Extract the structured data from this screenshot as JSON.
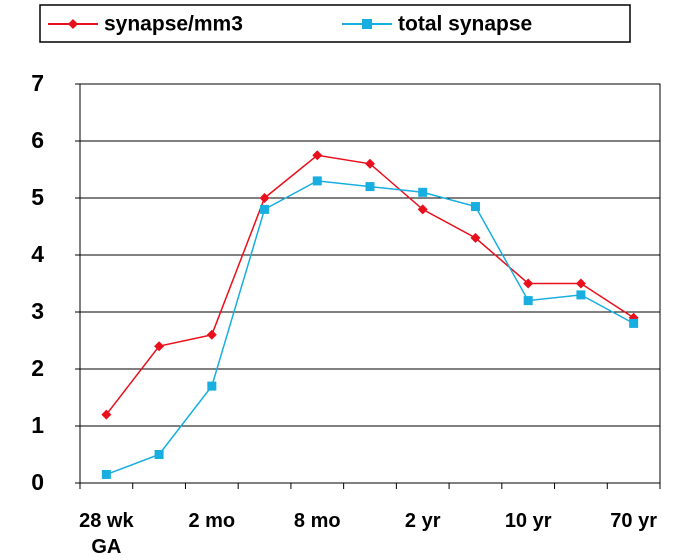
{
  "chart_data": {
    "type": "line",
    "categories": [
      "28 wk\nGA",
      null,
      "2 mo",
      null,
      "8 mo",
      null,
      "2 yr",
      null,
      "10 yr",
      null,
      "70 yr"
    ],
    "series": [
      {
        "name": "synapse/mm3",
        "color": "#e8101c",
        "marker": "diamond",
        "values": [
          1.2,
          2.4,
          2.6,
          5.0,
          5.75,
          5.6,
          4.8,
          4.3,
          3.5,
          3.5,
          2.9
        ]
      },
      {
        "name": "total synapse",
        "color": "#18aee0",
        "marker": "square",
        "values": [
          0.15,
          0.5,
          1.7,
          4.8,
          5.3,
          5.2,
          5.1,
          4.85,
          3.2,
          3.3,
          2.8
        ]
      }
    ],
    "ylim": [
      0,
      7
    ],
    "yticks": [
      0,
      1,
      2,
      3,
      4,
      5,
      6,
      7
    ],
    "grid": true
  }
}
